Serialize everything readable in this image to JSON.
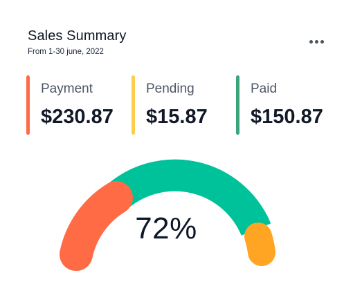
{
  "header": {
    "title": "Sales Summary",
    "subtitle": "From 1-30 june, 2022",
    "more_icon": "more-horizontal-icon"
  },
  "stats": [
    {
      "label": "Payment",
      "value": "$230.87",
      "color": "#ff6b45"
    },
    {
      "label": "Pending",
      "value": "$15.87",
      "color": "#ffcc4d"
    },
    {
      "label": "Paid",
      "value": "$150.87",
      "color": "#3aa57a"
    }
  ],
  "gauge": {
    "value_text": "72%",
    "percent": 72,
    "segments": [
      {
        "name": "payment",
        "color": "#ff6b45"
      },
      {
        "name": "paid",
        "color": "#00c29a"
      },
      {
        "name": "pending",
        "color": "#ffa523"
      }
    ]
  }
}
